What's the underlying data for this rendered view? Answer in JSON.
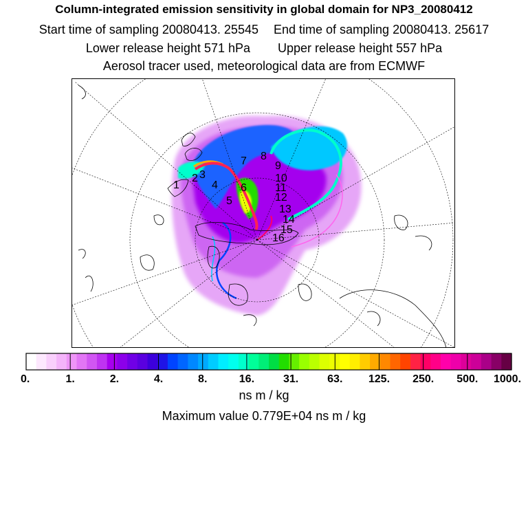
{
  "header": {
    "title": "Column-integrated emission sensitivity in global domain for NP3_20080412",
    "start_label": "Start time of sampling 20080413. 25545",
    "end_label": "End time of sampling 20080413. 25617",
    "lower_label": "Lower release height  571 hPa",
    "upper_label": "Upper release height  557 hPa",
    "tracer_label": "Aerosol tracer used, meteorological data are from ECMWF"
  },
  "map": {
    "markers": [
      "1",
      "2",
      "3",
      "4",
      "5",
      "6",
      "7",
      "8",
      "9",
      "10",
      "11",
      "12",
      "13",
      "14",
      "15",
      "16"
    ]
  },
  "colorbar": {
    "tick_labels": [
      "0.",
      "1.",
      "2.",
      "4.",
      "8.",
      "16.",
      "31.",
      "63.",
      "125.",
      "250.",
      "500.",
      "1000."
    ],
    "colors": [
      "#ffffff",
      "#fde8fe",
      "#f9cffc",
      "#f4b4fa",
      "#ee95f7",
      "#e276f5",
      "#d156f3",
      "#bf33f1",
      "#a700ee",
      "#8c00ea",
      "#7000e6",
      "#5a00e0",
      "#3c00dc",
      "#1f14e6",
      "#0044ff",
      "#0066ff",
      "#0088ff",
      "#00aaff",
      "#00ccff",
      "#00eeff",
      "#00ffee",
      "#00ffcc",
      "#00ff99",
      "#00ee77",
      "#00dd44",
      "#22dd00",
      "#66ee00",
      "#99ff00",
      "#bbff00",
      "#ddff00",
      "#eeff00",
      "#ffff00",
      "#ffee00",
      "#ffcc00",
      "#ffaa00",
      "#ff8800",
      "#ff6600",
      "#ff4400",
      "#ff2244",
      "#ff0066",
      "#ff0088",
      "#ff00aa",
      "#ee00aa",
      "#dd0099",
      "#cc0099",
      "#aa0088",
      "#880066",
      "#660044"
    ],
    "unit": "ns m / kg"
  },
  "footer": {
    "max_label": "Maximum value  0.779E+04 ns m / kg"
  }
}
